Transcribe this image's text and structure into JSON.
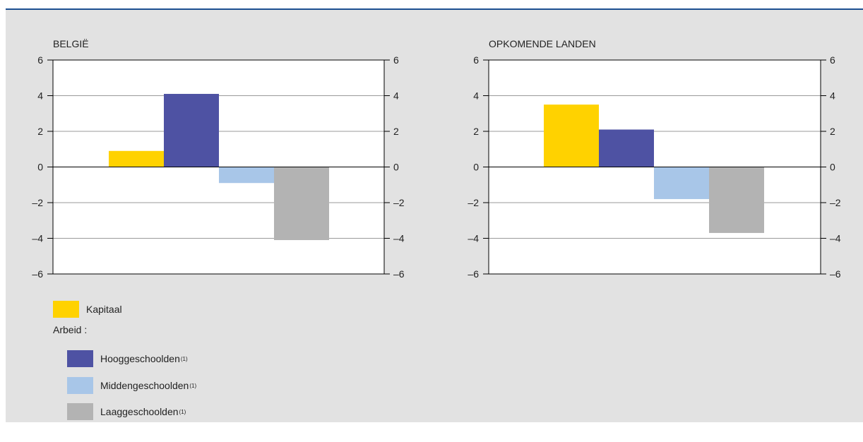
{
  "colors": {
    "rule": "#1d4f91",
    "panel": "#e2e2e2",
    "kapitaal": "#ffd200",
    "hoog": "#4e52a3",
    "midden": "#a8c6e8",
    "laag": "#b3b3b3"
  },
  "chart_data": [
    {
      "type": "bar",
      "title": "BELGIË",
      "categories": [
        "Kapitaal",
        "Hooggeschoolden",
        "Middengeschoolden",
        "Laaggeschoolden"
      ],
      "values": [
        0.9,
        4.1,
        -0.9,
        -4.1
      ],
      "ylim": [
        -6,
        6
      ],
      "yticks": [
        6,
        4,
        2,
        0,
        -2,
        -4,
        -6
      ],
      "ytick_labels": [
        "6",
        "4",
        "2",
        "0",
        "–2",
        "–4",
        "–6"
      ],
      "grid": true
    },
    {
      "type": "bar",
      "title": "OPKOMENDE LANDEN",
      "categories": [
        "Kapitaal",
        "Hooggeschoolden",
        "Middengeschoolden",
        "Laaggeschoolden"
      ],
      "values": [
        3.5,
        2.1,
        -1.8,
        -3.7
      ],
      "ylim": [
        -6,
        6
      ],
      "yticks": [
        6,
        4,
        2,
        0,
        -2,
        -4,
        -6
      ],
      "ytick_labels": [
        "6",
        "4",
        "2",
        "0",
        "–2",
        "–4",
        "–6"
      ],
      "grid": true
    }
  ],
  "legend": {
    "kapitaal": "Kapitaal",
    "arbeid": "Arbeid :",
    "hoog": "Hooggeschoolden",
    "midden": "Middengeschoolden",
    "laag": "Laaggeschoolden",
    "note": "(1)"
  }
}
